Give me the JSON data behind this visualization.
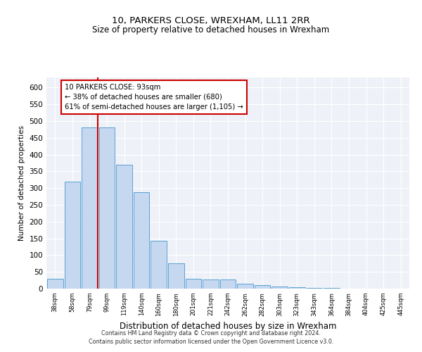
{
  "title1": "10, PARKERS CLOSE, WREXHAM, LL11 2RR",
  "title2": "Size of property relative to detached houses in Wrexham",
  "xlabel": "Distribution of detached houses by size in Wrexham",
  "ylabel": "Number of detached properties",
  "categories": [
    "38sqm",
    "58sqm",
    "79sqm",
    "99sqm",
    "119sqm",
    "140sqm",
    "160sqm",
    "180sqm",
    "201sqm",
    "221sqm",
    "242sqm",
    "262sqm",
    "282sqm",
    "303sqm",
    "323sqm",
    "343sqm",
    "364sqm",
    "384sqm",
    "404sqm",
    "425sqm",
    "445sqm"
  ],
  "values": [
    30,
    320,
    480,
    480,
    370,
    287,
    143,
    75,
    30,
    28,
    28,
    14,
    10,
    7,
    5,
    3,
    2,
    1,
    1,
    1,
    0
  ],
  "bar_color": "#c5d8f0",
  "bar_edge_color": "#5a9fd4",
  "red_line_x": 2.47,
  "annotation_text": "10 PARKERS CLOSE: 93sqm\n← 38% of detached houses are smaller (680)\n61% of semi-detached houses are larger (1,105) →",
  "annotation_box_color": "#ffffff",
  "annotation_box_edge": "#cc0000",
  "ylim": [
    0,
    630
  ],
  "yticks": [
    0,
    50,
    100,
    150,
    200,
    250,
    300,
    350,
    400,
    450,
    500,
    550,
    600
  ],
  "background_color": "#eef2f8",
  "footer1": "Contains HM Land Registry data © Crown copyright and database right 2024.",
  "footer2": "Contains public sector information licensed under the Open Government Licence v3.0."
}
